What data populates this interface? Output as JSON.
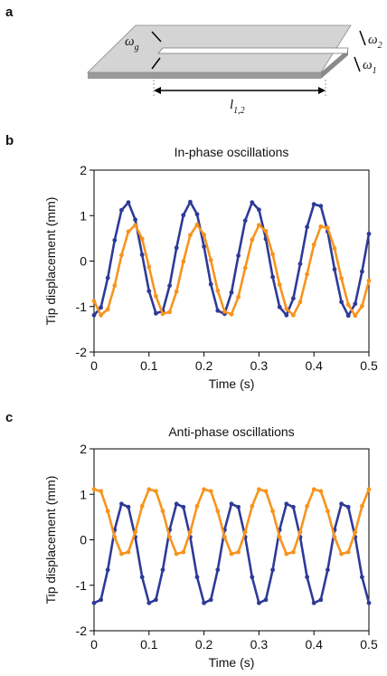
{
  "panels": [
    "a",
    "b",
    "c"
  ],
  "diagram": {
    "labels": [
      {
        "symbol": "ω",
        "sub": "g"
      },
      {
        "symbol": "ω",
        "sub": "2"
      },
      {
        "symbol": "ω",
        "sub": "1"
      },
      {
        "symbol": "l",
        "sub": "1,2"
      }
    ]
  },
  "chart_data": [
    {
      "type": "line",
      "title": "In-phase oscillations",
      "x_label": "Time (s)",
      "y_label": "Tip displacement (mm)",
      "x": [
        0,
        0.0125,
        0.025,
        0.0375,
        0.05,
        0.0625,
        0.075,
        0.0875,
        0.1,
        0.1125,
        0.125,
        0.1375,
        0.15,
        0.1625,
        0.175,
        0.1875,
        0.2,
        0.2125,
        0.225,
        0.2375,
        0.25,
        0.2625,
        0.275,
        0.2875,
        0.3,
        0.3125,
        0.325,
        0.3375,
        0.35,
        0.3625,
        0.375,
        0.3875,
        0.4,
        0.4125,
        0.425,
        0.4375,
        0.45,
        0.4625,
        0.475,
        0.4875,
        0.5
      ],
      "series": [
        {
          "color": "#2e3a98",
          "values": [
            -1.19,
            -1.02,
            -0.37,
            0.46,
            1.12,
            1.29,
            0.91,
            0.14,
            -0.66,
            -1.15,
            -1.1,
            -0.54,
            0.29,
            1.01,
            1.3,
            1.03,
            0.32,
            -0.51,
            -1.09,
            -1.16,
            -0.69,
            0.12,
            0.89,
            1.29,
            1.13,
            0.49,
            -0.35,
            -1.01,
            -1.19,
            -0.82,
            -0.06,
            0.75,
            1.25,
            1.21,
            0.65,
            -0.18,
            -0.9,
            -1.2,
            -0.94,
            -0.23,
            0.6
          ]
        },
        {
          "color": "#f7941d",
          "values": [
            -0.88,
            -1.19,
            -1.06,
            -0.54,
            0.13,
            0.65,
            0.79,
            0.49,
            -0.13,
            -0.77,
            -1.16,
            -1.12,
            -0.67,
            -0.01,
            0.57,
            0.8,
            0.58,
            0.02,
            -0.65,
            -1.11,
            -1.17,
            -0.79,
            -0.15,
            0.47,
            0.79,
            0.66,
            0.15,
            -0.52,
            -1.05,
            -1.19,
            -0.9,
            -0.29,
            0.36,
            0.76,
            0.73,
            0.28,
            -0.38,
            -0.96,
            -1.2,
            -0.99,
            -0.43
          ]
        }
      ],
      "xlim": [
        0,
        0.5
      ],
      "xticks": [
        0,
        0.1,
        0.2,
        0.3,
        0.4,
        0.5
      ],
      "ylim": [
        -2,
        2
      ],
      "yticks": [
        -2,
        -1,
        0,
        1,
        2
      ]
    },
    {
      "type": "line",
      "title": "Anti-phase oscillations",
      "x_label": "Time (s)",
      "y_label": "Tip displacement (mm)",
      "x": [
        0,
        0.0125,
        0.025,
        0.0375,
        0.05,
        0.0625,
        0.075,
        0.0875,
        0.1,
        0.1125,
        0.125,
        0.1375,
        0.15,
        0.1625,
        0.175,
        0.1875,
        0.2,
        0.2125,
        0.225,
        0.2375,
        0.25,
        0.2625,
        0.275,
        0.2875,
        0.3,
        0.3125,
        0.325,
        0.3375,
        0.35,
        0.3625,
        0.375,
        0.3875,
        0.4,
        0.4125,
        0.425,
        0.4375,
        0.45,
        0.4625,
        0.475,
        0.4875,
        0.5
      ],
      "series": [
        {
          "color": "#2e3a98",
          "values": [
            -1.39,
            -1.32,
            -0.66,
            0.22,
            0.79,
            0.72,
            0.06,
            -0.82,
            -1.39,
            -1.32,
            -0.66,
            0.22,
            0.79,
            0.72,
            0.06,
            -0.82,
            -1.39,
            -1.32,
            -0.66,
            0.22,
            0.79,
            0.72,
            0.06,
            -0.82,
            -1.39,
            -1.32,
            -0.66,
            0.22,
            0.79,
            0.72,
            0.06,
            -0.82,
            -1.39,
            -1.32,
            -0.66,
            0.22,
            0.79,
            0.72,
            0.06,
            -0.82,
            -1.39
          ]
        },
        {
          "color": "#f7941d",
          "values": [
            1.11,
            1.07,
            0.63,
            0.06,
            -0.31,
            -0.27,
            0.17,
            0.74,
            1.11,
            1.07,
            0.63,
            0.06,
            -0.31,
            -0.27,
            0.17,
            0.74,
            1.11,
            1.07,
            0.63,
            0.06,
            -0.31,
            -0.27,
            0.17,
            0.74,
            1.11,
            1.07,
            0.63,
            0.06,
            -0.31,
            -0.27,
            0.17,
            0.74,
            1.11,
            1.07,
            0.63,
            0.06,
            -0.31,
            -0.27,
            0.17,
            0.74,
            1.11
          ]
        }
      ],
      "xlim": [
        0,
        0.5
      ],
      "xticks": [
        0,
        0.1,
        0.2,
        0.3,
        0.4,
        0.5
      ],
      "ylim": [
        -2,
        2
      ],
      "yticks": [
        -2,
        -1,
        0,
        1,
        2
      ]
    }
  ]
}
